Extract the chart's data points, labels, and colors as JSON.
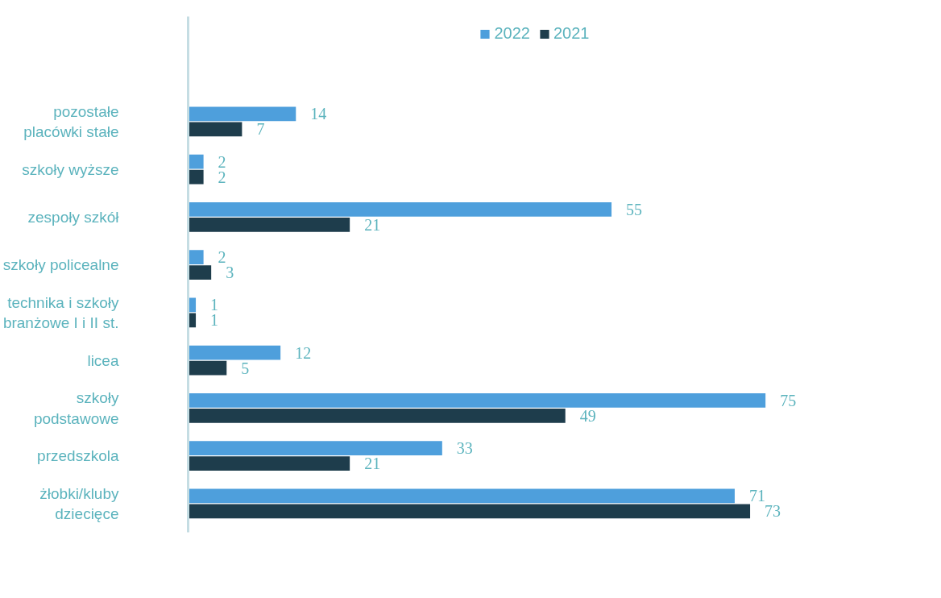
{
  "chart_data": {
    "type": "bar",
    "orientation": "horizontal",
    "data_labels": true,
    "legend": "top",
    "grid": false,
    "categories": [
      "pozostałe\nplacówki stałe",
      "szkoły wyższe",
      "zespoły szkół",
      "szkoły policealne",
      "technika i szkoły\nbranżowe I i II st.",
      "licea",
      "szkoły\npodstawowe",
      "przedszkola",
      "żłobki/kluby\ndziecięce"
    ],
    "series": [
      {
        "name": "2022",
        "color": "#4e9fdc",
        "values": [
          14,
          2,
          55,
          2,
          1,
          12,
          75,
          33,
          71
        ]
      },
      {
        "name": "2021",
        "color": "#1e3d4c",
        "values": [
          7,
          2,
          21,
          3,
          1,
          5,
          49,
          21,
          73
        ]
      }
    ]
  }
}
